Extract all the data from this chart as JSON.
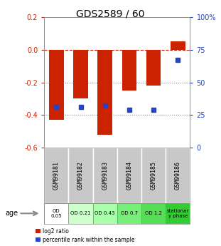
{
  "title": "GDS2589 / 60",
  "samples": [
    "GSM99181",
    "GSM99182",
    "GSM99183",
    "GSM99184",
    "GSM99185",
    "GSM99186"
  ],
  "log2_ratio": [
    -0.43,
    -0.3,
    -0.52,
    -0.25,
    -0.22,
    0.05
  ],
  "percentile_rank": [
    31,
    31,
    32,
    29,
    29,
    67
  ],
  "bar_color": "#cc2200",
  "dot_color": "#2244cc",
  "ylim_left": [
    -0.6,
    0.2
  ],
  "ylim_right": [
    0,
    100
  ],
  "yticks_left": [
    -0.6,
    -0.4,
    -0.2,
    0.0,
    0.2
  ],
  "yticks_right": [
    0,
    25,
    50,
    75,
    100
  ],
  "ytick_labels_right": [
    "0",
    "25",
    "50",
    "75",
    "100%"
  ],
  "hlines": [
    0.0,
    -0.2,
    -0.4
  ],
  "hline_styles": [
    "dashed",
    "dotted",
    "dotted"
  ],
  "hline_colors": [
    "#cc2200",
    "#888888",
    "#888888"
  ],
  "age_labels": [
    "OD\n0.05",
    "OD 0.21",
    "OD 0.43",
    "OD 0.7",
    "OD 1.2",
    "stationar\ny phase"
  ],
  "age_bg_colors": [
    "#ffffff",
    "#ccffcc",
    "#aaffaa",
    "#77ee77",
    "#55dd55",
    "#33cc33"
  ],
  "sample_bg_color": "#c8c8c8",
  "legend_red": "log2 ratio",
  "legend_blue": "percentile rank within the sample",
  "bar_width": 0.6,
  "title_fontsize": 10
}
